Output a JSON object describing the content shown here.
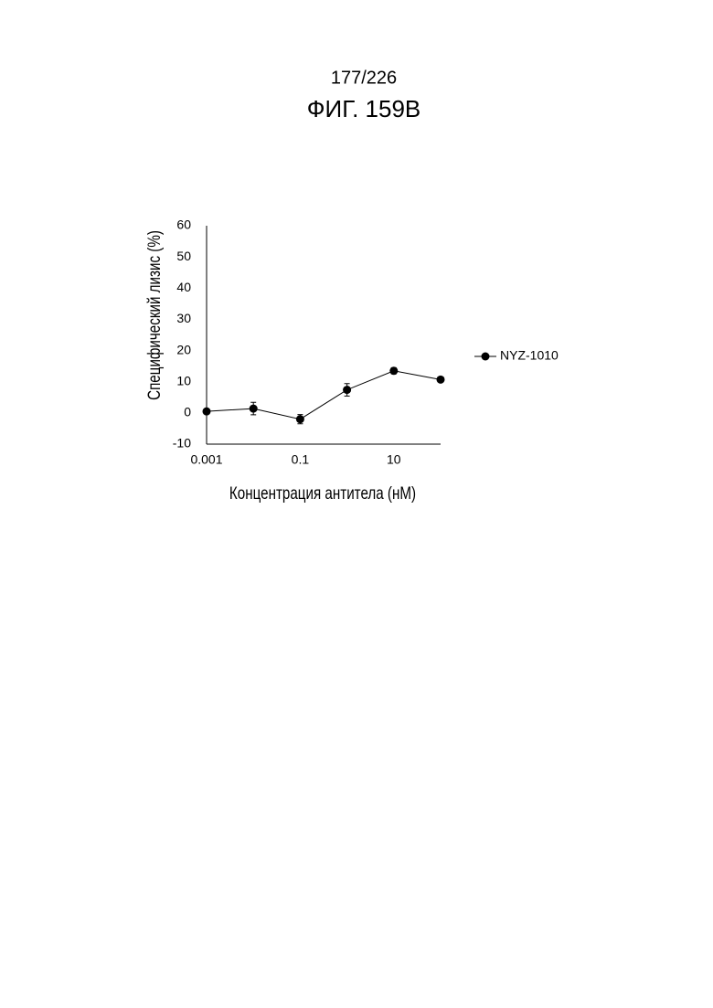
{
  "header": {
    "page": "177/226",
    "figure": "ФИГ. 159В"
  },
  "chart_data": {
    "type": "line",
    "x": [
      0.001,
      0.01,
      0.1,
      1,
      10,
      100
    ],
    "series": [
      {
        "name": "NYZ-1010",
        "color": "#000000",
        "values": [
          0.5,
          1.4,
          -2,
          7.4,
          13.5,
          10.7
        ],
        "errors": [
          0.5,
          2,
          1.5,
          2,
          1,
          0.5
        ]
      }
    ],
    "x_label": "Концентрация антитела (нМ)",
    "y_label": "Специфический лизис (%)",
    "xscale": "log",
    "xlim": [
      0.001,
      100
    ],
    "xticks": [
      0.001,
      0.1,
      10
    ],
    "ylim": [
      -10,
      60
    ],
    "yticks": [
      -10,
      0,
      10,
      20,
      30,
      40,
      50,
      60
    ],
    "legend": "right",
    "grid": false
  }
}
